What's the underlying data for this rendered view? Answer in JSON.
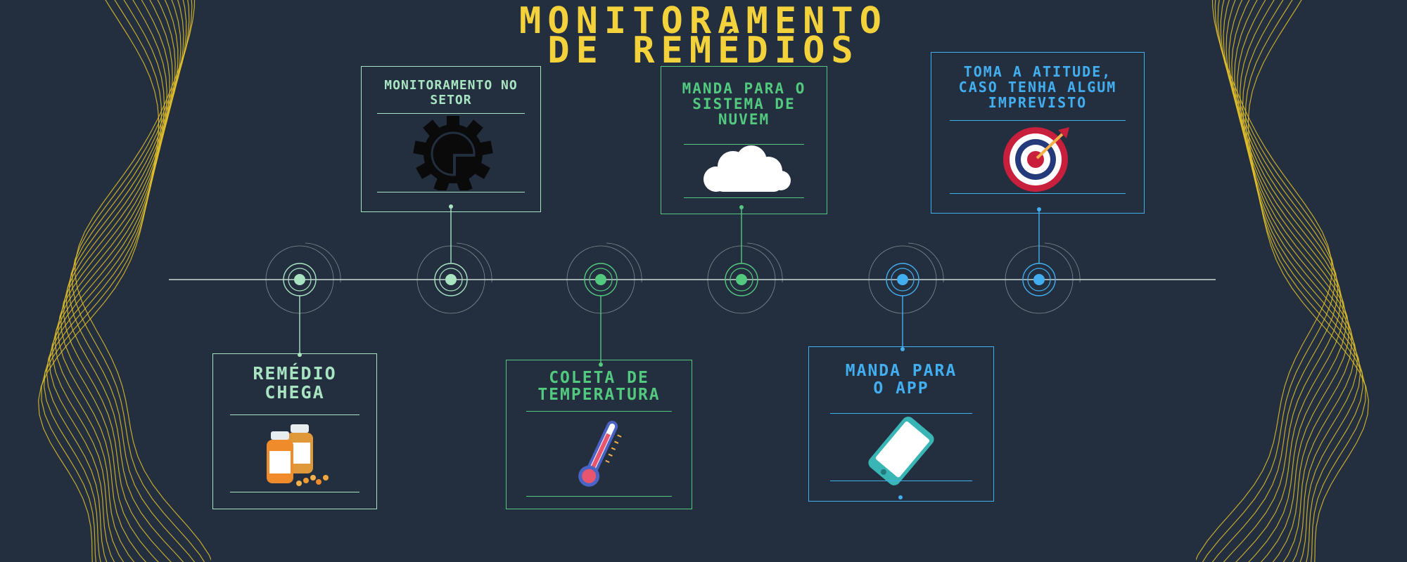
{
  "title": {
    "line1": "MONITORAMENTO",
    "line2": "DE REMÉDIOS"
  },
  "colors": {
    "background": "#232f3f",
    "title": "#f3d23b",
    "deco_lines": "#e2bf2c",
    "timeline": "#c9dcd3",
    "mint": "#a9e4c2",
    "green": "#52c97e",
    "blue": "#42aef0"
  },
  "steps": [
    {
      "label": "REMÉDIO CHEGA",
      "icon": "medicine-bottles-icon",
      "color": "#a9e4c2"
    },
    {
      "label": "MONITORAMENTO NO SETOR",
      "icon": "gear-icon",
      "color": "#a9e4c2"
    },
    {
      "label": "COLETA DE TEMPERATURA",
      "icon": "thermometer-icon",
      "color": "#52c97e"
    },
    {
      "label": "MANDA PARA O SISTEMA DE NUVEM",
      "icon": "cloud-icon",
      "color": "#52c97e"
    },
    {
      "label": "MANDA PARA O APP",
      "icon": "smartphone-icon",
      "color": "#42aef0"
    },
    {
      "label": "TOMA A ATITUDE, CASO TENHA ALGUM IMPREVISTO",
      "icon": "target-icon",
      "color": "#42aef0"
    }
  ]
}
